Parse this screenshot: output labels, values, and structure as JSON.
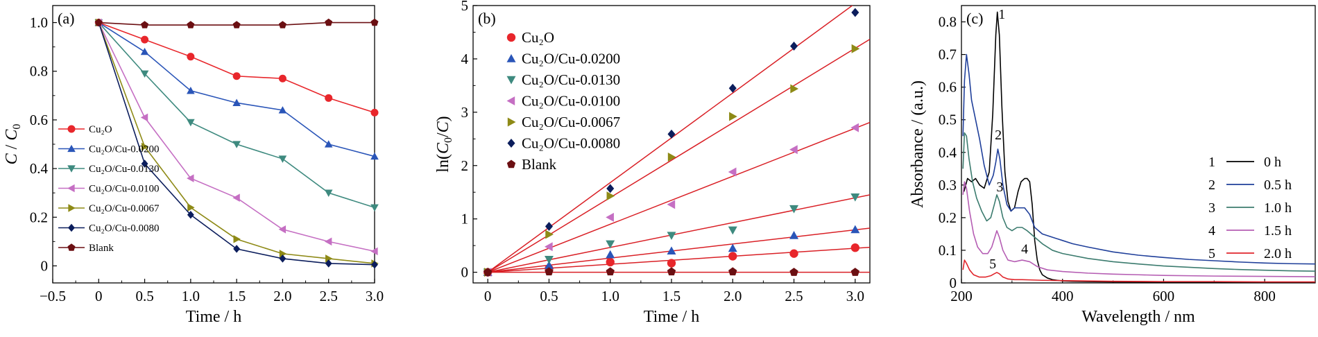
{
  "chart_data": [
    {
      "type": "line",
      "panel_label": "(a)",
      "xlabel": "Time / h",
      "ylabel": "C / C0",
      "xlim": [
        -0.5,
        3.0
      ],
      "ylim": [
        -0.07,
        1.07
      ],
      "xticks": [
        -0.5,
        0,
        0.5,
        1.0,
        1.5,
        2.0,
        2.5,
        3.0
      ],
      "xtick_labels": [
        "−0.5",
        "0",
        "0.5",
        "1.0",
        "1.5",
        "2.0",
        "2.5",
        "3.0"
      ],
      "yticks": [
        0,
        0.2,
        0.4,
        0.6,
        0.8,
        1.0
      ],
      "ytick_labels": [
        "0",
        "0.2",
        "0.4",
        "0.6",
        "0.8",
        "1.0"
      ],
      "legend_position": "lower-left",
      "x": [
        0,
        0.5,
        1.0,
        1.5,
        2.0,
        2.5,
        3.0
      ],
      "series": [
        {
          "name": "Cu₂O",
          "color": "#e8262b",
          "marker": "circle",
          "values": [
            1.0,
            0.93,
            0.86,
            0.78,
            0.77,
            0.69,
            0.63
          ]
        },
        {
          "name": "Cu₂O/Cu-0.0200",
          "color": "#2a55b8",
          "marker": "triangle-up",
          "values": [
            1.0,
            0.88,
            0.72,
            0.67,
            0.64,
            0.5,
            0.45
          ]
        },
        {
          "name": "Cu₂O/Cu-0.0130",
          "color": "#3e8a7f",
          "marker": "triangle-down",
          "values": [
            1.0,
            0.79,
            0.59,
            0.5,
            0.44,
            0.3,
            0.24
          ]
        },
        {
          "name": "Cu₂O/Cu-0.0100",
          "color": "#c56fc3",
          "marker": "triangle-left",
          "values": [
            1.0,
            0.61,
            0.36,
            0.28,
            0.15,
            0.1,
            0.06
          ]
        },
        {
          "name": "Cu₂O/Cu-0.0067",
          "color": "#8e8a16",
          "marker": "triangle-right",
          "values": [
            1.0,
            0.49,
            0.24,
            0.11,
            0.05,
            0.03,
            0.01
          ]
        },
        {
          "name": "Cu₂O/Cu-0.0080",
          "color": "#0b1d5c",
          "marker": "diamond",
          "values": [
            1.0,
            0.42,
            0.21,
            0.07,
            0.03,
            0.01,
            0.005
          ]
        },
        {
          "name": "Blank",
          "color": "#6b0f12",
          "marker": "pentagon",
          "values": [
            1.0,
            0.99,
            0.99,
            0.99,
            0.99,
            1.0,
            1.0
          ]
        }
      ]
    },
    {
      "type": "scatter",
      "panel_label": "(b)",
      "xlabel": "Time / h",
      "ylabel": "ln(C0/C)",
      "xlim": [
        -0.12,
        3.12
      ],
      "ylim": [
        -0.2,
        5.0
      ],
      "xticks": [
        0,
        0.5,
        1.0,
        1.5,
        2.0,
        2.5,
        3.0
      ],
      "xtick_labels": [
        "0",
        "0.5",
        "1.0",
        "1.5",
        "2.0",
        "2.5",
        "3.0"
      ],
      "yticks": [
        0,
        1,
        2,
        3,
        4,
        5
      ],
      "ytick_labels": [
        "0",
        "1",
        "2",
        "3",
        "4",
        "5"
      ],
      "legend_position": "top-left",
      "fit_line_color": "#d91f25",
      "x": [
        0,
        0.5,
        1.0,
        1.5,
        2.0,
        2.5,
        3.0
      ],
      "series": [
        {
          "name": "Cu₂O",
          "color": "#e8262b",
          "marker": "circle",
          "values": [
            0,
            0.07,
            0.19,
            0.17,
            0.3,
            0.35,
            0.46
          ],
          "fit_slope": 0.15
        },
        {
          "name": "Cu₂O/Cu-0.0200",
          "color": "#2a55b8",
          "marker": "triangle-up",
          "values": [
            0,
            0.13,
            0.33,
            0.4,
            0.45,
            0.69,
            0.8
          ],
          "fit_slope": 0.265
        },
        {
          "name": "Cu₂O/Cu-0.0130",
          "color": "#3e8a7f",
          "marker": "triangle-down",
          "values": [
            0,
            0.24,
            0.53,
            0.69,
            0.79,
            1.19,
            1.41
          ],
          "fit_slope": 0.465
        },
        {
          "name": "Cu₂O/Cu-0.0100",
          "color": "#c56fc3",
          "marker": "triangle-left",
          "values": [
            0,
            0.48,
            1.03,
            1.27,
            1.88,
            2.3,
            2.71
          ],
          "fit_slope": 0.9
        },
        {
          "name": "Cu₂O/Cu-0.0067",
          "color": "#8e8a16",
          "marker": "triangle-right",
          "values": [
            0,
            0.71,
            1.43,
            2.16,
            2.92,
            3.44,
            4.19
          ],
          "fit_slope": 1.4
        },
        {
          "name": "Cu₂O/Cu-0.0080",
          "color": "#0b1d5c",
          "marker": "diamond",
          "values": [
            0,
            0.86,
            1.57,
            2.59,
            3.45,
            4.24,
            4.87
          ],
          "fit_slope": 1.68
        },
        {
          "name": "Blank",
          "color": "#6b0f12",
          "marker": "pentagon",
          "values": [
            0,
            0.01,
            0.01,
            0.01,
            0.01,
            0.0,
            0.0
          ],
          "fit_slope": 0.0
        }
      ]
    },
    {
      "type": "line",
      "panel_label": "(c)",
      "xlabel": "Wavelength / nm",
      "ylabel": "Absorbance / (a.u.)",
      "xlim": [
        200,
        900
      ],
      "ylim": [
        0,
        0.85
      ],
      "xticks": [
        200,
        400,
        600,
        800
      ],
      "xtick_labels": [
        "200",
        "400",
        "600",
        "800"
      ],
      "yticks": [
        0,
        0.1,
        0.2,
        0.3,
        0.4,
        0.5,
        0.6,
        0.7,
        0.8
      ],
      "ytick_labels": [
        "0",
        "0.1",
        "0.2",
        "0.3",
        "0.4",
        "0.5",
        "0.6",
        "0.7",
        "0.8"
      ],
      "legend_position": "right",
      "series": [
        {
          "name": "0 h",
          "number": "1",
          "color": "#000000",
          "x": [
            205,
            212,
            220,
            228,
            236,
            245,
            255,
            262,
            268,
            271,
            275,
            280,
            286,
            292,
            298,
            305,
            312,
            318,
            325,
            330,
            335,
            340,
            345,
            350,
            355,
            360,
            370,
            380,
            390,
            400,
            420,
            450,
            500,
            900
          ],
          "y": [
            0.28,
            0.32,
            0.31,
            0.32,
            0.3,
            0.29,
            0.34,
            0.52,
            0.76,
            0.83,
            0.76,
            0.54,
            0.34,
            0.25,
            0.22,
            0.23,
            0.28,
            0.31,
            0.32,
            0.32,
            0.31,
            0.24,
            0.13,
            0.07,
            0.04,
            0.025,
            0.015,
            0.01,
            0.008,
            0.006,
            0.005,
            0.004,
            0.003,
            0.002
          ]
        },
        {
          "name": "0.5 h",
          "number": "2",
          "color": "#1f3f9a",
          "x": [
            203,
            206,
            210,
            215,
            220,
            228,
            236,
            245,
            255,
            263,
            268,
            272,
            276,
            282,
            290,
            298,
            305,
            315,
            325,
            335,
            345,
            360,
            380,
            400,
            420,
            450,
            500,
            550,
            600,
            650,
            700,
            750,
            800,
            850,
            900
          ],
          "y": [
            0.45,
            0.62,
            0.7,
            0.64,
            0.56,
            0.5,
            0.44,
            0.36,
            0.3,
            0.33,
            0.37,
            0.41,
            0.38,
            0.3,
            0.24,
            0.22,
            0.23,
            0.23,
            0.23,
            0.21,
            0.17,
            0.15,
            0.14,
            0.13,
            0.12,
            0.11,
            0.095,
            0.085,
            0.078,
            0.072,
            0.068,
            0.064,
            0.061,
            0.059,
            0.058
          ]
        },
        {
          "name": "1.0 h",
          "number": "3",
          "color": "#3b7b6e",
          "x": [
            203,
            206,
            210,
            215,
            222,
            230,
            240,
            250,
            258,
            265,
            270,
            275,
            282,
            290,
            300,
            310,
            320,
            330,
            345,
            360,
            380,
            400,
            450,
            500,
            550,
            600,
            650,
            700,
            750,
            800,
            850,
            900
          ],
          "y": [
            0.35,
            0.46,
            0.45,
            0.38,
            0.31,
            0.26,
            0.22,
            0.19,
            0.2,
            0.24,
            0.27,
            0.25,
            0.2,
            0.17,
            0.16,
            0.17,
            0.17,
            0.16,
            0.14,
            0.12,
            0.1,
            0.09,
            0.075,
            0.065,
            0.058,
            0.052,
            0.048,
            0.044,
            0.041,
            0.039,
            0.037,
            0.036
          ]
        },
        {
          "name": "1.5 h",
          "number": "4",
          "color": "#b55db3",
          "x": [
            203,
            206,
            210,
            216,
            224,
            232,
            242,
            252,
            260,
            266,
            270,
            275,
            282,
            292,
            305,
            320,
            335,
            350,
            370,
            400,
            450,
            500,
            550,
            600,
            700,
            800,
            900
          ],
          "y": [
            0.27,
            0.31,
            0.29,
            0.22,
            0.15,
            0.11,
            0.09,
            0.09,
            0.11,
            0.14,
            0.16,
            0.14,
            0.1,
            0.07,
            0.065,
            0.07,
            0.065,
            0.05,
            0.04,
            0.035,
            0.03,
            0.027,
            0.025,
            0.023,
            0.021,
            0.02,
            0.019
          ]
        },
        {
          "name": "2.0 h",
          "number": "5",
          "color": "#e0252b",
          "x": [
            203,
            206,
            210,
            216,
            224,
            235,
            248,
            258,
            265,
            270,
            275,
            282,
            292,
            305,
            320,
            340,
            360,
            400,
            500,
            600,
            700,
            800,
            900
          ],
          "y": [
            0.04,
            0.07,
            0.06,
            0.04,
            0.025,
            0.018,
            0.018,
            0.022,
            0.028,
            0.032,
            0.028,
            0.018,
            0.012,
            0.01,
            0.01,
            0.009,
            0.008,
            0.007,
            0.005,
            0.004,
            0.004,
            0.003,
            0.003
          ]
        }
      ],
      "annotations": [
        {
          "text": "1",
          "x": 280,
          "y": 0.81
        },
        {
          "text": "2",
          "x": 273,
          "y": 0.44
        },
        {
          "text": "3",
          "x": 276,
          "y": 0.28
        },
        {
          "text": "4",
          "x": 325,
          "y": 0.09
        },
        {
          "text": "5",
          "x": 262,
          "y": 0.045
        }
      ]
    }
  ]
}
